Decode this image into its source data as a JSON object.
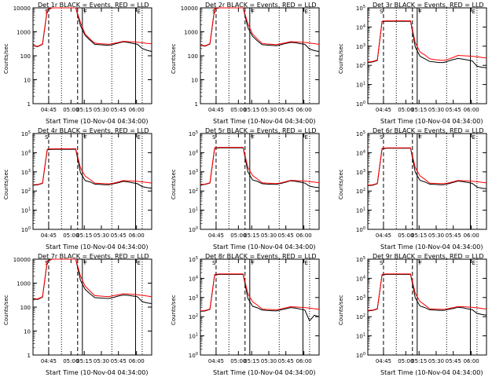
{
  "chart_data": [
    {
      "type": "line",
      "title": "Det 1r BLACK = Events, RED = LLD",
      "ylabel": "Counts/sec",
      "xlabel": "Start Time (10-Nov-04 04:34:00)",
      "yscale": "log",
      "ylim": [
        1,
        10000
      ],
      "y_ticks": [
        "1",
        "10",
        "100",
        "1000",
        "10000"
      ],
      "x_ticks": [
        "04:45",
        "05:00",
        "05:15",
        "05:30",
        "05:45",
        "06:00"
      ],
      "series": [
        {
          "name": "BLACK",
          "values": [
            260,
            240,
            300,
            8000,
            12000,
            12000,
            12000,
            12000,
            12000,
            12000,
            1800,
            700,
            450,
            300,
            290,
            280,
            270,
            300,
            340,
            380,
            360,
            330,
            300,
            200,
            170,
            150
          ]
        },
        {
          "name": "RED",
          "values": [
            270,
            250,
            310,
            8500,
            13000,
            13000,
            13000,
            13000,
            13000,
            13000,
            2500,
            800,
            500,
            340,
            320,
            310,
            300,
            330,
            360,
            400,
            390,
            380,
            370,
            350,
            330,
            320
          ]
        }
      ]
    },
    {
      "type": "line",
      "title": "Det 2r BLACK = Events, RED = LLD",
      "ylabel": "Counts/sec",
      "xlabel": "Start Time (10-Nov-04 04:34:00)",
      "yscale": "log",
      "ylim": [
        1,
        10000
      ],
      "y_ticks": [
        "1",
        "10",
        "100",
        "1000",
        "10000"
      ],
      "x_ticks": [
        "04:45",
        "05:00",
        "05:15",
        "05:30",
        "05:45",
        "06:00"
      ],
      "series": [
        {
          "name": "BLACK",
          "values": [
            270,
            250,
            310,
            9000,
            13000,
            13000,
            13000,
            13000,
            13000,
            13000,
            1500,
            650,
            420,
            290,
            280,
            270,
            260,
            290,
            330,
            360,
            350,
            320,
            300,
            190,
            165,
            150
          ]
        },
        {
          "name": "RED",
          "values": [
            280,
            260,
            320,
            9500,
            14000,
            14000,
            14000,
            14000,
            14000,
            14000,
            2200,
            800,
            500,
            330,
            310,
            300,
            290,
            320,
            350,
            390,
            380,
            370,
            360,
            340,
            320,
            300
          ]
        }
      ]
    },
    {
      "type": "line",
      "title": "Det 3r BLACK = Events, RED = LLD",
      "ylabel": "Counts/sec",
      "xlabel": "Start Time (10-Nov-04 04:34:00)",
      "yscale": "log",
      "ylim": [
        1,
        100000
      ],
      "y_ticks": [
        "10^0",
        "10^1",
        "10^2",
        "10^3",
        "10^4",
        "10^5"
      ],
      "x_ticks": [
        "04:45",
        "05:00",
        "05:15",
        "05:30",
        "05:45",
        "06:00"
      ],
      "series": [
        {
          "name": "BLACK",
          "values": [
            140,
            150,
            180,
            19000,
            20000,
            20000,
            20000,
            20000,
            20000,
            20000,
            900,
            300,
            220,
            160,
            150,
            140,
            140,
            170,
            200,
            230,
            210,
            190,
            170,
            90,
            80,
            75
          ]
        },
        {
          "name": "RED",
          "values": [
            150,
            160,
            190,
            20000,
            21000,
            21000,
            21000,
            21000,
            21000,
            21000,
            1500,
            500,
            350,
            220,
            200,
            190,
            180,
            210,
            260,
            330,
            320,
            310,
            300,
            280,
            260,
            240
          ]
        }
      ]
    },
    {
      "type": "line",
      "title": "Det 4r BLACK = Events, RED = LLD",
      "ylabel": "Counts/sec",
      "xlabel": "Start Time (10-Nov-04 04:34:00)",
      "yscale": "log",
      "ylim": [
        1,
        100000
      ],
      "y_ticks": [
        "10^0",
        "10^1",
        "10^2",
        "10^3",
        "10^4",
        "10^5"
      ],
      "x_ticks": [
        "04:45",
        "05:00",
        "05:15",
        "05:30",
        "05:45",
        "06:00"
      ],
      "series": [
        {
          "name": "BLACK",
          "values": [
            200,
            210,
            250,
            14000,
            15000,
            15000,
            15000,
            15000,
            15000,
            15000,
            900,
            350,
            300,
            230,
            220,
            215,
            210,
            240,
            270,
            320,
            300,
            270,
            240,
            170,
            150,
            140
          ]
        },
        {
          "name": "RED",
          "values": [
            210,
            220,
            260,
            15000,
            16000,
            16000,
            16000,
            16000,
            16000,
            16000,
            1600,
            600,
            400,
            260,
            250,
            240,
            235,
            260,
            300,
            350,
            340,
            330,
            320,
            300,
            280,
            260
          ]
        }
      ]
    },
    {
      "type": "line",
      "title": "Det 5r BLACK = Events, RED = LLD",
      "ylabel": "Counts/sec",
      "xlabel": "Start Time (10-Nov-04 04:34:00)",
      "yscale": "log",
      "ylim": [
        1,
        100000
      ],
      "y_ticks": [
        "10^0",
        "10^1",
        "10^2",
        "10^3",
        "10^4",
        "10^5"
      ],
      "x_ticks": [
        "04:45",
        "05:00",
        "05:15",
        "05:30",
        "05:45",
        "06:00"
      ],
      "series": [
        {
          "name": "BLACK",
          "values": [
            210,
            220,
            260,
            17000,
            18000,
            18000,
            18000,
            18000,
            18000,
            18000,
            1000,
            380,
            320,
            240,
            230,
            225,
            220,
            250,
            290,
            340,
            320,
            290,
            260,
            180,
            160,
            150
          ]
        },
        {
          "name": "RED",
          "values": [
            220,
            230,
            270,
            18000,
            19000,
            19000,
            19000,
            19000,
            19000,
            19000,
            1700,
            650,
            420,
            270,
            260,
            250,
            245,
            270,
            310,
            360,
            350,
            340,
            330,
            310,
            290,
            270
          ]
        }
      ]
    },
    {
      "type": "line",
      "title": "Det 6r BLACK = Events, RED = LLD",
      "ylabel": "Counts/sec",
      "xlabel": "Start Time (10-Nov-04 04:34:00)",
      "yscale": "log",
      "ylim": [
        1,
        100000
      ],
      "y_ticks": [
        "10^0",
        "10^1",
        "10^2",
        "10^3",
        "10^4",
        "10^5"
      ],
      "x_ticks": [
        "04:45",
        "05:00",
        "05:15",
        "05:30",
        "05:45",
        "06:00"
      ],
      "series": [
        {
          "name": "BLACK",
          "values": [
            190,
            200,
            240,
            16000,
            17000,
            17000,
            17000,
            17000,
            17000,
            17000,
            950,
            360,
            300,
            230,
            220,
            215,
            210,
            240,
            280,
            330,
            310,
            280,
            250,
            160,
            140,
            130
          ]
        },
        {
          "name": "RED",
          "values": [
            200,
            210,
            250,
            17000,
            18000,
            18000,
            18000,
            18000,
            18000,
            18000,
            1650,
            620,
            410,
            260,
            250,
            245,
            240,
            265,
            305,
            355,
            345,
            335,
            325,
            305,
            285,
            265
          ]
        }
      ]
    },
    {
      "type": "line",
      "title": "Det 7r BLACK = Events, RED = LLD",
      "ylabel": "Counts/sec",
      "xlabel": "Start Time (10-Nov-04 04:34:00)",
      "yscale": "log",
      "ylim": [
        1,
        10000
      ],
      "y_ticks": [
        "1",
        "10",
        "100",
        "1000",
        "10000"
      ],
      "x_ticks": [
        "04:45",
        "05:00",
        "05:15",
        "05:30",
        "05:45",
        "06:00"
      ],
      "series": [
        {
          "name": "BLACK",
          "values": [
            220,
            210,
            260,
            8000,
            12000,
            12000,
            12000,
            12000,
            12000,
            12000,
            1300,
            550,
            360,
            250,
            240,
            235,
            230,
            255,
            290,
            320,
            310,
            290,
            270,
            170,
            150,
            140
          ]
        },
        {
          "name": "RED",
          "values": [
            230,
            220,
            270,
            8500,
            13000,
            13000,
            13000,
            13000,
            13000,
            13000,
            2000,
            750,
            470,
            300,
            290,
            280,
            275,
            300,
            330,
            360,
            350,
            340,
            330,
            310,
            290,
            270
          ]
        }
      ]
    },
    {
      "type": "line",
      "title": "Det 8r BLACK = Events, RED = LLD",
      "ylabel": "Counts/sec",
      "xlabel": "Start Time (10-Nov-04 04:34:00)",
      "yscale": "log",
      "ylim": [
        1,
        100000
      ],
      "y_ticks": [
        "10^0",
        "10^1",
        "10^2",
        "10^3",
        "10^4",
        "10^5"
      ],
      "x_ticks": [
        "04:45",
        "05:00",
        "05:15",
        "05:30",
        "05:45",
        "06:00"
      ],
      "series": [
        {
          "name": "BLACK",
          "values": [
            190,
            200,
            240,
            15000,
            16000,
            16000,
            16000,
            16000,
            16000,
            16000,
            900,
            350,
            290,
            220,
            210,
            205,
            200,
            230,
            260,
            300,
            280,
            250,
            220,
            60,
            120,
            100
          ]
        },
        {
          "name": "RED",
          "values": [
            200,
            210,
            250,
            16000,
            17000,
            17000,
            17000,
            17000,
            17000,
            17000,
            1600,
            600,
            400,
            250,
            240,
            235,
            230,
            255,
            290,
            330,
            320,
            310,
            300,
            280,
            260,
            240
          ]
        }
      ]
    },
    {
      "type": "line",
      "title": "Det 9r BLACK = Events, RED = LLD",
      "ylabel": "Counts/sec",
      "xlabel": "Start Time (10-Nov-04 04:34:00)",
      "yscale": "log",
      "ylim": [
        1,
        100000
      ],
      "y_ticks": [
        "10^0",
        "10^1",
        "10^2",
        "10^3",
        "10^4",
        "10^5"
      ],
      "x_ticks": [
        "04:45",
        "05:00",
        "05:15",
        "05:30",
        "05:45",
        "06:00"
      ],
      "series": [
        {
          "name": "BLACK",
          "values": [
            200,
            210,
            250,
            15000,
            16000,
            16000,
            16000,
            16000,
            16000,
            16000,
            950,
            360,
            300,
            230,
            220,
            215,
            210,
            240,
            270,
            310,
            290,
            260,
            230,
            150,
            130,
            120
          ]
        },
        {
          "name": "RED",
          "values": [
            210,
            220,
            260,
            16000,
            17000,
            17000,
            17000,
            17000,
            17000,
            17000,
            1650,
            620,
            410,
            260,
            250,
            245,
            240,
            265,
            300,
            340,
            330,
            320,
            310,
            290,
            270,
            250
          ]
        }
      ]
    }
  ],
  "colors": {
    "events": "#000000",
    "lld": "#ff0000"
  }
}
